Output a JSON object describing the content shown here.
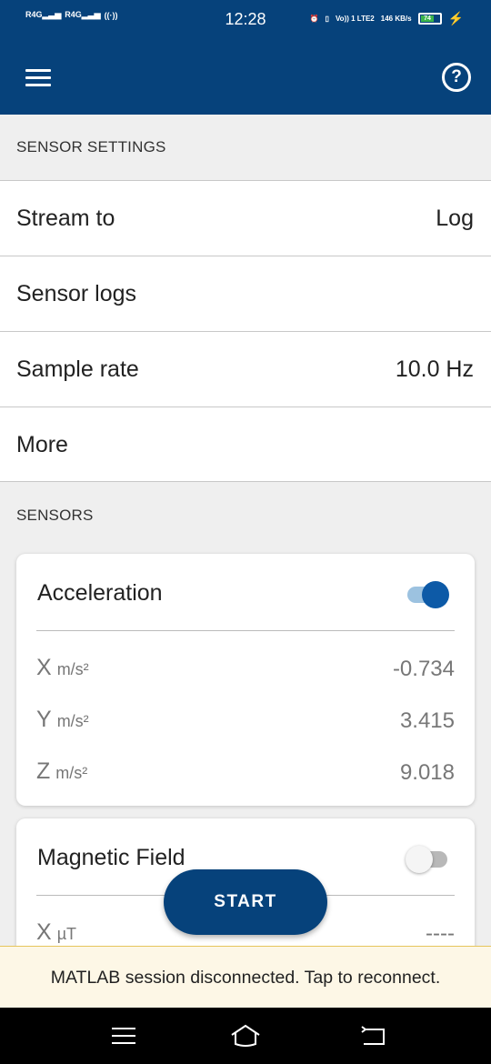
{
  "statusbar": {
    "net1": "4G",
    "net2": "4G",
    "time": "12:28",
    "volte": "Vo)) 1 LTE2",
    "speed": "146 KB/s",
    "battery": "74"
  },
  "appbar": {
    "menu_icon": "hamburger-menu-icon",
    "help_icon": "help-circle-icon",
    "help_glyph": "?"
  },
  "sensor_settings": {
    "header": "SENSOR SETTINGS",
    "rows": [
      {
        "label": "Stream to",
        "value": "Log"
      },
      {
        "label": "Sensor logs",
        "value": ""
      },
      {
        "label": "Sample rate",
        "value": "10.0 Hz"
      },
      {
        "label": "More",
        "value": ""
      }
    ]
  },
  "sensors": {
    "header": "SENSORS",
    "acceleration": {
      "title": "Acceleration",
      "enabled": true,
      "axes": [
        {
          "name": "X",
          "unit": "m/s²",
          "value": "-0.734"
        },
        {
          "name": "Y",
          "unit": "m/s²",
          "value": "3.415"
        },
        {
          "name": "Z",
          "unit": "m/s²",
          "value": "9.018"
        }
      ]
    },
    "magnetic_field": {
      "title": "Magnetic Field",
      "enabled": false,
      "axes": [
        {
          "name": "X",
          "unit": "µT",
          "value": "----"
        }
      ]
    }
  },
  "start_button": {
    "label": "START"
  },
  "snackbar": {
    "message": "MATLAB session disconnected. Tap to reconnect."
  },
  "colors": {
    "primary": "#06427b",
    "toggle_on": "#0d5aa7",
    "snackbar_bg": "#fdf7e6"
  }
}
